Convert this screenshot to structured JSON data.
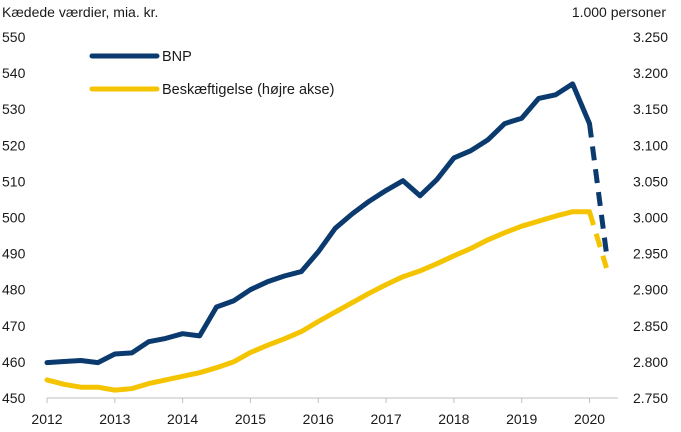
{
  "chart_data": {
    "type": "line",
    "left_axis_title": "Kædede værdier, mia. kr.",
    "right_axis_title": "1.000 personer",
    "x_ticks": [
      "2012",
      "2013",
      "2014",
      "2015",
      "2016",
      "2017",
      "2018",
      "2019",
      "2020"
    ],
    "y_left": {
      "min": 450,
      "max": 550,
      "ticks": [
        "450",
        "460",
        "470",
        "480",
        "490",
        "500",
        "510",
        "520",
        "530",
        "540",
        "550"
      ]
    },
    "y_right": {
      "min": 2750,
      "max": 3250,
      "ticks": [
        "2.750",
        "2.800",
        "2.850",
        "2.900",
        "2.950",
        "3.000",
        "3.050",
        "3.100",
        "3.150",
        "3.200",
        "3.250"
      ]
    },
    "legend_placement": "top-left",
    "grid": false,
    "series": [
      {
        "name": "BNP",
        "axis": "left",
        "color": "#0b3a6f",
        "x": [
          2012.0,
          2012.25,
          2012.5,
          2012.75,
          2013.0,
          2013.25,
          2013.5,
          2013.75,
          2014.0,
          2014.25,
          2014.5,
          2014.75,
          2015.0,
          2015.25,
          2015.5,
          2015.75,
          2016.0,
          2016.25,
          2016.5,
          2016.75,
          2017.0,
          2017.25,
          2017.5,
          2017.75,
          2018.0,
          2018.25,
          2018.5,
          2018.75,
          2019.0,
          2019.25,
          2019.5,
          2019.75,
          2020.0
        ],
        "values": [
          459.8,
          460.1,
          460.4,
          459.8,
          462.2,
          462.5,
          465.6,
          466.5,
          467.8,
          467.2,
          475.2,
          476.9,
          480.0,
          482.2,
          483.8,
          485.0,
          490.5,
          497.0,
          501.0,
          504.5,
          507.5,
          510.2,
          506.0,
          510.5,
          516.5,
          518.5,
          521.5,
          526.0,
          527.5,
          533.0,
          534.0,
          537.0,
          526.0
        ],
        "projection": {
          "x": [
            2020.0,
            2020.25
          ],
          "values": [
            526.0,
            490.0
          ]
        }
      },
      {
        "name": "Beskæftigelse (højre akse)",
        "axis": "right",
        "color": "#f5c400",
        "x": [
          2012.0,
          2012.25,
          2012.5,
          2012.75,
          2013.0,
          2013.25,
          2013.5,
          2013.75,
          2014.0,
          2014.25,
          2014.5,
          2014.75,
          2015.0,
          2015.25,
          2015.5,
          2015.75,
          2016.0,
          2016.25,
          2016.5,
          2016.75,
          2017.0,
          2017.25,
          2017.5,
          2017.75,
          2018.0,
          2018.25,
          2018.5,
          2018.75,
          2019.0,
          2019.25,
          2019.5,
          2019.75,
          2020.0
        ],
        "values": [
          2775,
          2769,
          2765,
          2765,
          2761,
          2763,
          2770,
          2775,
          2780,
          2785,
          2792,
          2800,
          2813,
          2823,
          2832,
          2842,
          2856,
          2869,
          2882,
          2895,
          2907,
          2918,
          2926,
          2936,
          2947,
          2957,
          2969,
          2979,
          2988,
          2995,
          3002,
          3008,
          3008
        ],
        "projection": {
          "x": [
            2020.0,
            2020.25
          ],
          "values": [
            3008,
            2930
          ]
        }
      }
    ]
  }
}
